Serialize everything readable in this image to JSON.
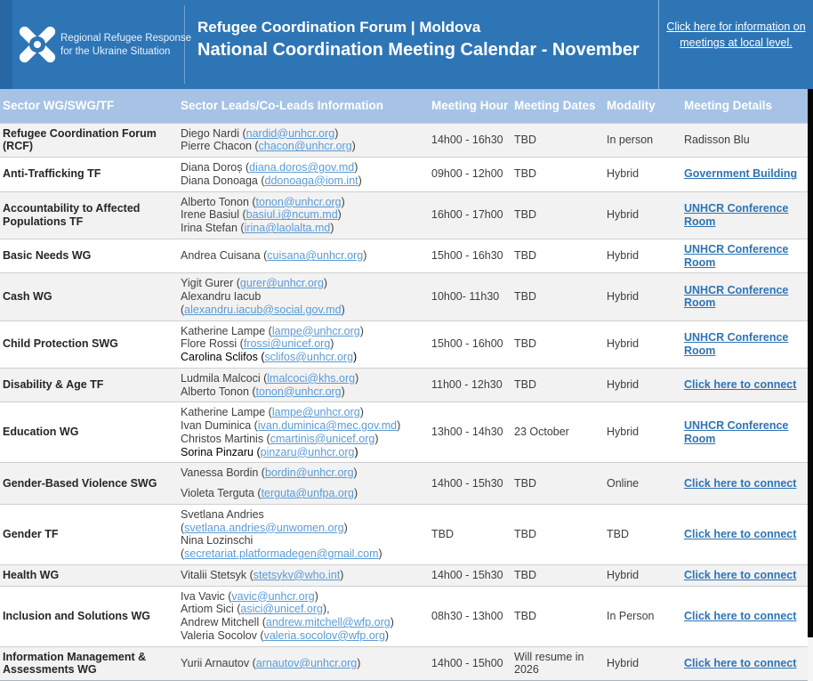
{
  "colors": {
    "banner_bg": "#2e75b6",
    "banner_left_strip": "#2667a4",
    "table_header_bg": "#a6c3e6",
    "row_alt_bg": "#f2f2f2",
    "email_link": "#5b9bd5",
    "details_link": "#2e74b5",
    "right_edge": "#060606"
  },
  "header": {
    "logo": {
      "line1": "Regional Refugee Response",
      "line2": "for the Ukraine Situation"
    },
    "title_line1": "Refugee Coordination Forum | Moldova",
    "title_line2": "National Coordination Meeting Calendar - November",
    "link": "Click here for information on meetings at local level."
  },
  "table": {
    "columns": [
      "Sector WG/SWG/TF",
      "Sector Leads/Co-Leads Information",
      "Meeting Hour",
      "Meeting Dates",
      "Modality",
      "Meeting Details"
    ],
    "rows": [
      {
        "sector": "Refugee Coordination Forum (RCF)",
        "leads": [
          {
            "name": "Diego Nardi",
            "email": "nardid@unhcr.org"
          },
          {
            "name": "Pierre Chacon",
            "email": "chacon@unhcr.org"
          }
        ],
        "hour": "14h00 - 16h30",
        "dates": "TBD",
        "modality": "In person",
        "details": {
          "label": "Radisson Blu",
          "link": false
        }
      },
      {
        "sector": "Anti-Trafficking TF",
        "leads": [
          {
            "name": "Diana Doroș",
            "email": "diana.doros@gov.md"
          },
          {
            "name": "Diana Donoaga",
            "email": "ddonoaga@iom.int"
          }
        ],
        "hour": "09h00 - 12h00",
        "dates": "TBD",
        "modality": "Hybrid",
        "details": {
          "label": "Government Building",
          "link": true
        }
      },
      {
        "sector": "Accountability to Affected Populations TF",
        "leads": [
          {
            "name": "Alberto Tonon",
            "email": "tonon@unhcr.org"
          },
          {
            "name": "Irene Basiul",
            "email": "basiul.i@ncum.md"
          },
          {
            "name": "Irina Stefan",
            "email": "irina@laolalta.md"
          }
        ],
        "hour": "16h00 - 17h00",
        "dates": "TBD",
        "modality": "Hybrid",
        "details": {
          "label": "UNHCR Conference Room",
          "link": true
        }
      },
      {
        "sector": "Basic Needs WG",
        "leads": [
          {
            "name": "Andrea Cuisana",
            "email": "cuisana@unhcr.org"
          }
        ],
        "hour": "15h00 - 16h30",
        "dates": "TBD",
        "modality": "Hybrid",
        "details": {
          "label": "UNHCR Conference Room",
          "link": true
        }
      },
      {
        "sector": "Cash WG",
        "leads": [
          {
            "name": "Yigit Gurer",
            "email": "gurer@unhcr.org"
          },
          {
            "name": "Alexandru Iacub",
            "email": "alexandru.iacub@social.gov.md"
          }
        ],
        "hour": "10h00- 11h30",
        "dates": "TBD",
        "modality": "Hybrid",
        "details": {
          "label": "UNHCR Conference Room",
          "link": true
        }
      },
      {
        "sector": "Child Protection SWG",
        "leads": [
          {
            "name": "Katherine Lampe",
            "email": "lampe@unhcr.org"
          },
          {
            "name": "Flore Rossi",
            "email": "frossi@unicef.org"
          },
          {
            "name": "Carolina Sclifos",
            "email": "sclifos@unhcr.org",
            "dark": true
          }
        ],
        "hour": "15h00 - 16h00",
        "dates": "TBD",
        "modality": "Hybrid",
        "details": {
          "label": "UNHCR Conference Room",
          "link": true
        }
      },
      {
        "sector": "Disability & Age TF",
        "leads": [
          {
            "name": "Ludmila Malcoci",
            "email": "lmalcoci@khs.org"
          },
          {
            "name": "Alberto Tonon",
            "email": "tonon@unhcr.org"
          }
        ],
        "hour": "11h00 - 12h30",
        "dates": "TBD",
        "modality": "Hybrid",
        "details": {
          "label": "Click here to connect",
          "link": true
        }
      },
      {
        "sector": "Education WG",
        "leads": [
          {
            "name": "Katherine Lampe",
            "email": "lampe@unhcr.org"
          },
          {
            "name": "Ivan Duminica",
            "email": "ivan.duminica@mec.gov.md"
          },
          {
            "name": "Christos Martinis",
            "email": "cmartinis@unicef.org"
          },
          {
            "name": "Sorina Pinzaru",
            "email": "pinzaru@unhcr.org",
            "dark": true
          }
        ],
        "hour": "13h00 - 14h30",
        "dates": "23 October",
        "modality": "Hybrid",
        "details": {
          "label": "UNHCR Conference Room",
          "link": true
        }
      },
      {
        "sector": "Gender-Based Violence SWG",
        "leads_spaced": true,
        "leads": [
          {
            "name": "Vanessa Bordin",
            "email": "bordin@unhcr.org"
          },
          {
            "name": "Violeta Terguta",
            "email": "terguta@unfpa.org"
          }
        ],
        "hour": "14h00 - 15h30",
        "dates": "TBD",
        "modality": "Online",
        "details": {
          "label": "Click here to connect",
          "link": true
        }
      },
      {
        "sector": "Gender TF",
        "leads": [
          {
            "name": "Svetlana Andries",
            "email": "svetlana.andries@unwomen.org"
          },
          {
            "name": "Nina Lozinschi",
            "email": "secretariat.platformadegen@gmail.com"
          }
        ],
        "hour": "TBD",
        "dates": "TBD",
        "modality": "TBD",
        "details": {
          "label": "Click here to connect",
          "link": true
        }
      },
      {
        "sector": "Health WG",
        "leads": [
          {
            "name": "Vitalii Stetsyk",
            "email": "stetsykv@who.int"
          }
        ],
        "hour": "14h00 - 15h30",
        "dates": "TBD",
        "modality": "Hybrid",
        "details": {
          "label": "Click here to connect",
          "link": true
        }
      },
      {
        "sector": "Inclusion and Solutions WG",
        "leads": [
          {
            "name": "Iva Vavic",
            "email": "vavic@unhcr.org"
          },
          {
            "name": "Artiom Sici",
            "email": "asici@unicef.org",
            "suffix": ","
          },
          {
            "name": "Andrew Mitchell",
            "email": "andrew.mitchell@wfp.org"
          },
          {
            "name": "Valeria Socolov",
            "email": "valeria.socolov@wfp.org"
          }
        ],
        "hour": "08h30 - 13h00",
        "dates": "TBD",
        "modality": "In Person",
        "details": {
          "label": "Click here to connect",
          "link": true
        }
      },
      {
        "sector": "Information Management & Assessments WG",
        "leads": [
          {
            "name": "Yurii Arnautov",
            "email": "arnautov@unhcr.org"
          }
        ],
        "hour": "14h00 - 15h00",
        "dates": "Will resume in 2026",
        "modality": "Hybrid",
        "details": {
          "label": "Click here to connect",
          "link": true
        }
      }
    ]
  }
}
